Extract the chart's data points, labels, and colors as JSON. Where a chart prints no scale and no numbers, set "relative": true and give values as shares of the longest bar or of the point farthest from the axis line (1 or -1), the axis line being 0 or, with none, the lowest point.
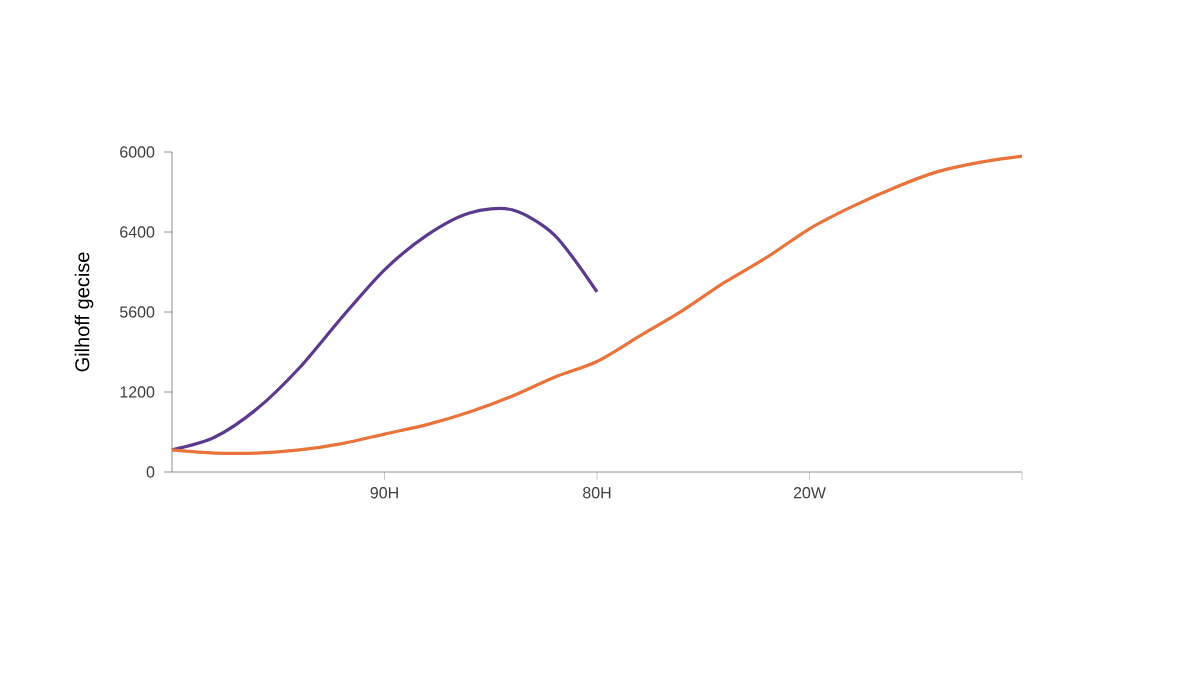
{
  "chart_data": {
    "type": "line",
    "relative": true,
    "ylabel": "Gilhoff gecise",
    "categories": [
      null,
      null,
      null,
      null,
      null,
      "90H",
      null,
      null,
      null,
      null,
      "80H",
      null,
      null,
      null,
      null,
      "20W",
      null,
      null,
      null,
      null,
      null
    ],
    "annotations": [
      "0",
      "1200",
      "5600",
      "6400",
      "6000"
    ],
    "grid": false,
    "marker": "none",
    "line_style": "solid",
    "series": [
      {
        "color": "#5b3a8e",
        "values": [
          0.07,
          0.11,
          0.2,
          0.33,
          0.49,
          0.64,
          0.75,
          0.82,
          0.83,
          0.75,
          0.57,
          null,
          null,
          null,
          null,
          null,
          null,
          null,
          null,
          null,
          null
        ]
      },
      {
        "color": "#e8743b",
        "values": [
          0.07,
          0.06,
          0.06,
          0.07,
          0.09,
          0.12,
          0.15,
          0.19,
          0.24,
          0.3,
          0.35,
          0.43,
          0.51,
          0.6,
          0.68,
          0.77,
          0.84,
          0.9,
          0.95,
          0.98,
          1
        ]
      }
    ]
  }
}
